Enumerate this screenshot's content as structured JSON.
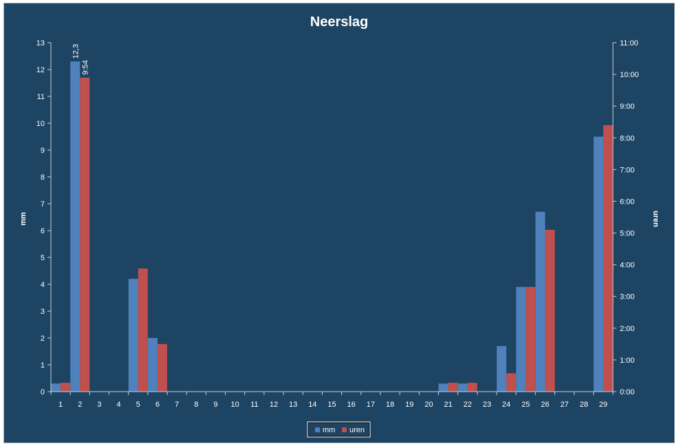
{
  "chart_data": {
    "type": "bar",
    "title": "Neerslag",
    "ylabel_left": "mm",
    "ylabel_right": "uren",
    "categories": [
      "1",
      "2",
      "3",
      "4",
      "5",
      "6",
      "7",
      "8",
      "9",
      "10",
      "11",
      "12",
      "13",
      "14",
      "15",
      "16",
      "17",
      "18",
      "19",
      "20",
      "21",
      "22",
      "23",
      "24",
      "25",
      "26",
      "27",
      "28",
      "29"
    ],
    "ylim_left": [
      0,
      13
    ],
    "yticks_left": [
      "0",
      "1",
      "2",
      "3",
      "4",
      "5",
      "6",
      "7",
      "8",
      "9",
      "10",
      "11",
      "12",
      "13"
    ],
    "ylim_right_hours": [
      0,
      11
    ],
    "yticks_right": [
      "0:00",
      "1:00",
      "2:00",
      "3:00",
      "4:00",
      "5:00",
      "6:00",
      "7:00",
      "8:00",
      "9:00",
      "10:00",
      "11:00"
    ],
    "series": [
      {
        "name": "mm",
        "axis": "left",
        "color": "#4f81bd",
        "values": [
          0.3,
          12.3,
          0,
          0,
          4.2,
          2.0,
          0,
          0,
          0,
          0,
          0,
          0,
          0,
          0,
          0,
          0,
          0,
          0,
          0,
          0,
          0.3,
          0.3,
          0,
          1.7,
          3.9,
          6.7,
          0,
          0,
          9.5
        ]
      },
      {
        "name": "uren",
        "axis": "right",
        "color": "#c0504d",
        "values": [
          0.28,
          9.9,
          0,
          0,
          3.88,
          1.5,
          0,
          0,
          0,
          0,
          0,
          0,
          0,
          0,
          0,
          0,
          0,
          0,
          0,
          0,
          0.28,
          0.28,
          0,
          0.58,
          3.3,
          5.1,
          0,
          0,
          8.4
        ]
      }
    ],
    "data_labels": [
      {
        "series": "mm",
        "category": "2",
        "text": "12,3"
      },
      {
        "series": "uren",
        "category": "2",
        "text": "9:54"
      }
    ],
    "legend_position": "bottom",
    "grid": false
  }
}
